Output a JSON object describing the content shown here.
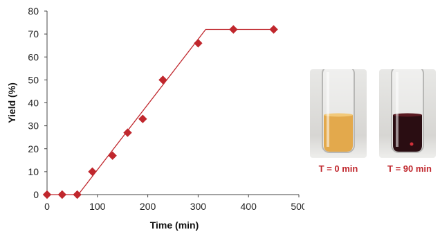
{
  "chart_data": {
    "type": "scatter",
    "xlabel": "Time  (min)",
    "ylabel": "Yield  (%)",
    "xlim": [
      0,
      500
    ],
    "ylim": [
      0,
      80
    ],
    "xticks": [
      "0",
      "100",
      "200",
      "300",
      "400",
      "500"
    ],
    "yticks": [
      "0",
      "10",
      "20",
      "30",
      "40",
      "50",
      "60",
      "70",
      "80"
    ],
    "grid": false,
    "series": [
      {
        "marker": "diamond",
        "color": "#c0272d",
        "x": [
          0,
          30,
          60,
          90,
          130,
          160,
          190,
          230,
          300,
          370,
          450
        ],
        "y": [
          0,
          0,
          0,
          10,
          17,
          27,
          33,
          50,
          66,
          72,
          72
        ]
      }
    ],
    "fit_line": {
      "color": "#c0272d",
      "x": [
        0,
        62,
        315,
        450
      ],
      "y": [
        0,
        0,
        72,
        72
      ]
    }
  },
  "photos": [
    {
      "caption": "T = 0 min",
      "liquid_color": "#e3a94c",
      "caption_color": "#c0272d"
    },
    {
      "caption": "T = 90 min",
      "liquid_color": "#2a0d12",
      "caption_color": "#c0272d"
    }
  ]
}
